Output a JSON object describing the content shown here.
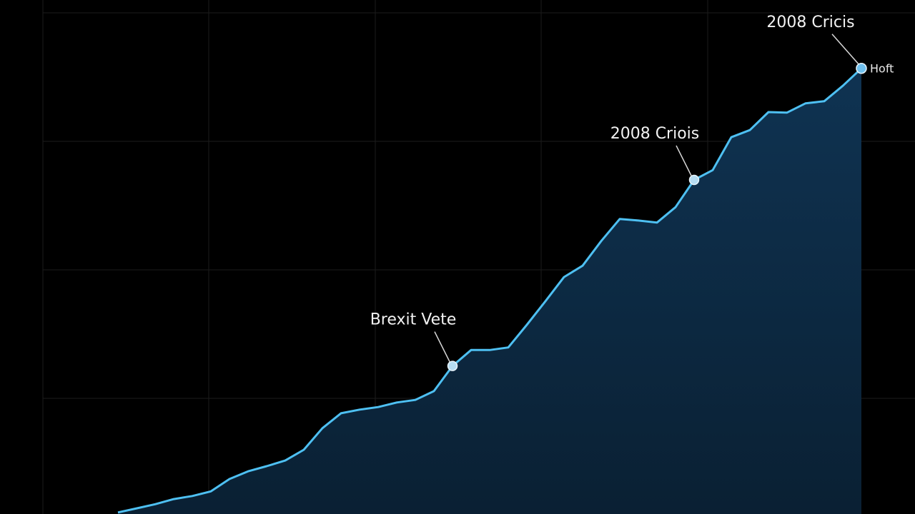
{
  "chart_data": {
    "type": "area",
    "categories": [
      null,
      null,
      null,
      null,
      null,
      null,
      null,
      null,
      null,
      null,
      null,
      null,
      null,
      null,
      null,
      null,
      null,
      null,
      null,
      null,
      null,
      null,
      null,
      null,
      null,
      null,
      null,
      null,
      null,
      null,
      null,
      null,
      null,
      null,
      null,
      null,
      null,
      null,
      null,
      null,
      null
    ],
    "values": [
      0.3,
      1.1,
      1.9,
      2.9,
      3.5,
      4.4,
      6.8,
      8.3,
      9.3,
      10.4,
      12.5,
      16.7,
      19.6,
      20.3,
      20.8,
      21.7,
      22.2,
      23.9,
      28.8,
      31.9,
      31.9,
      32.4,
      36.8,
      41.4,
      46.1,
      48.3,
      53.1,
      57.4,
      57.1,
      56.7,
      59.7,
      65.0,
      66.9,
      73.3,
      74.7,
      78.2,
      78.1,
      79.9,
      80.3,
      83.3,
      86.7
    ],
    "color": "#4ec0f2",
    "ylim": [
      0,
      100
    ],
    "annotations": [
      {
        "text": "Brexit Vete",
        "index": 18
      },
      {
        "text": "2008 Criois",
        "index": 31
      },
      {
        "text": "2008 Cricis",
        "index": 40
      }
    ],
    "end_label": "Hoft"
  }
}
